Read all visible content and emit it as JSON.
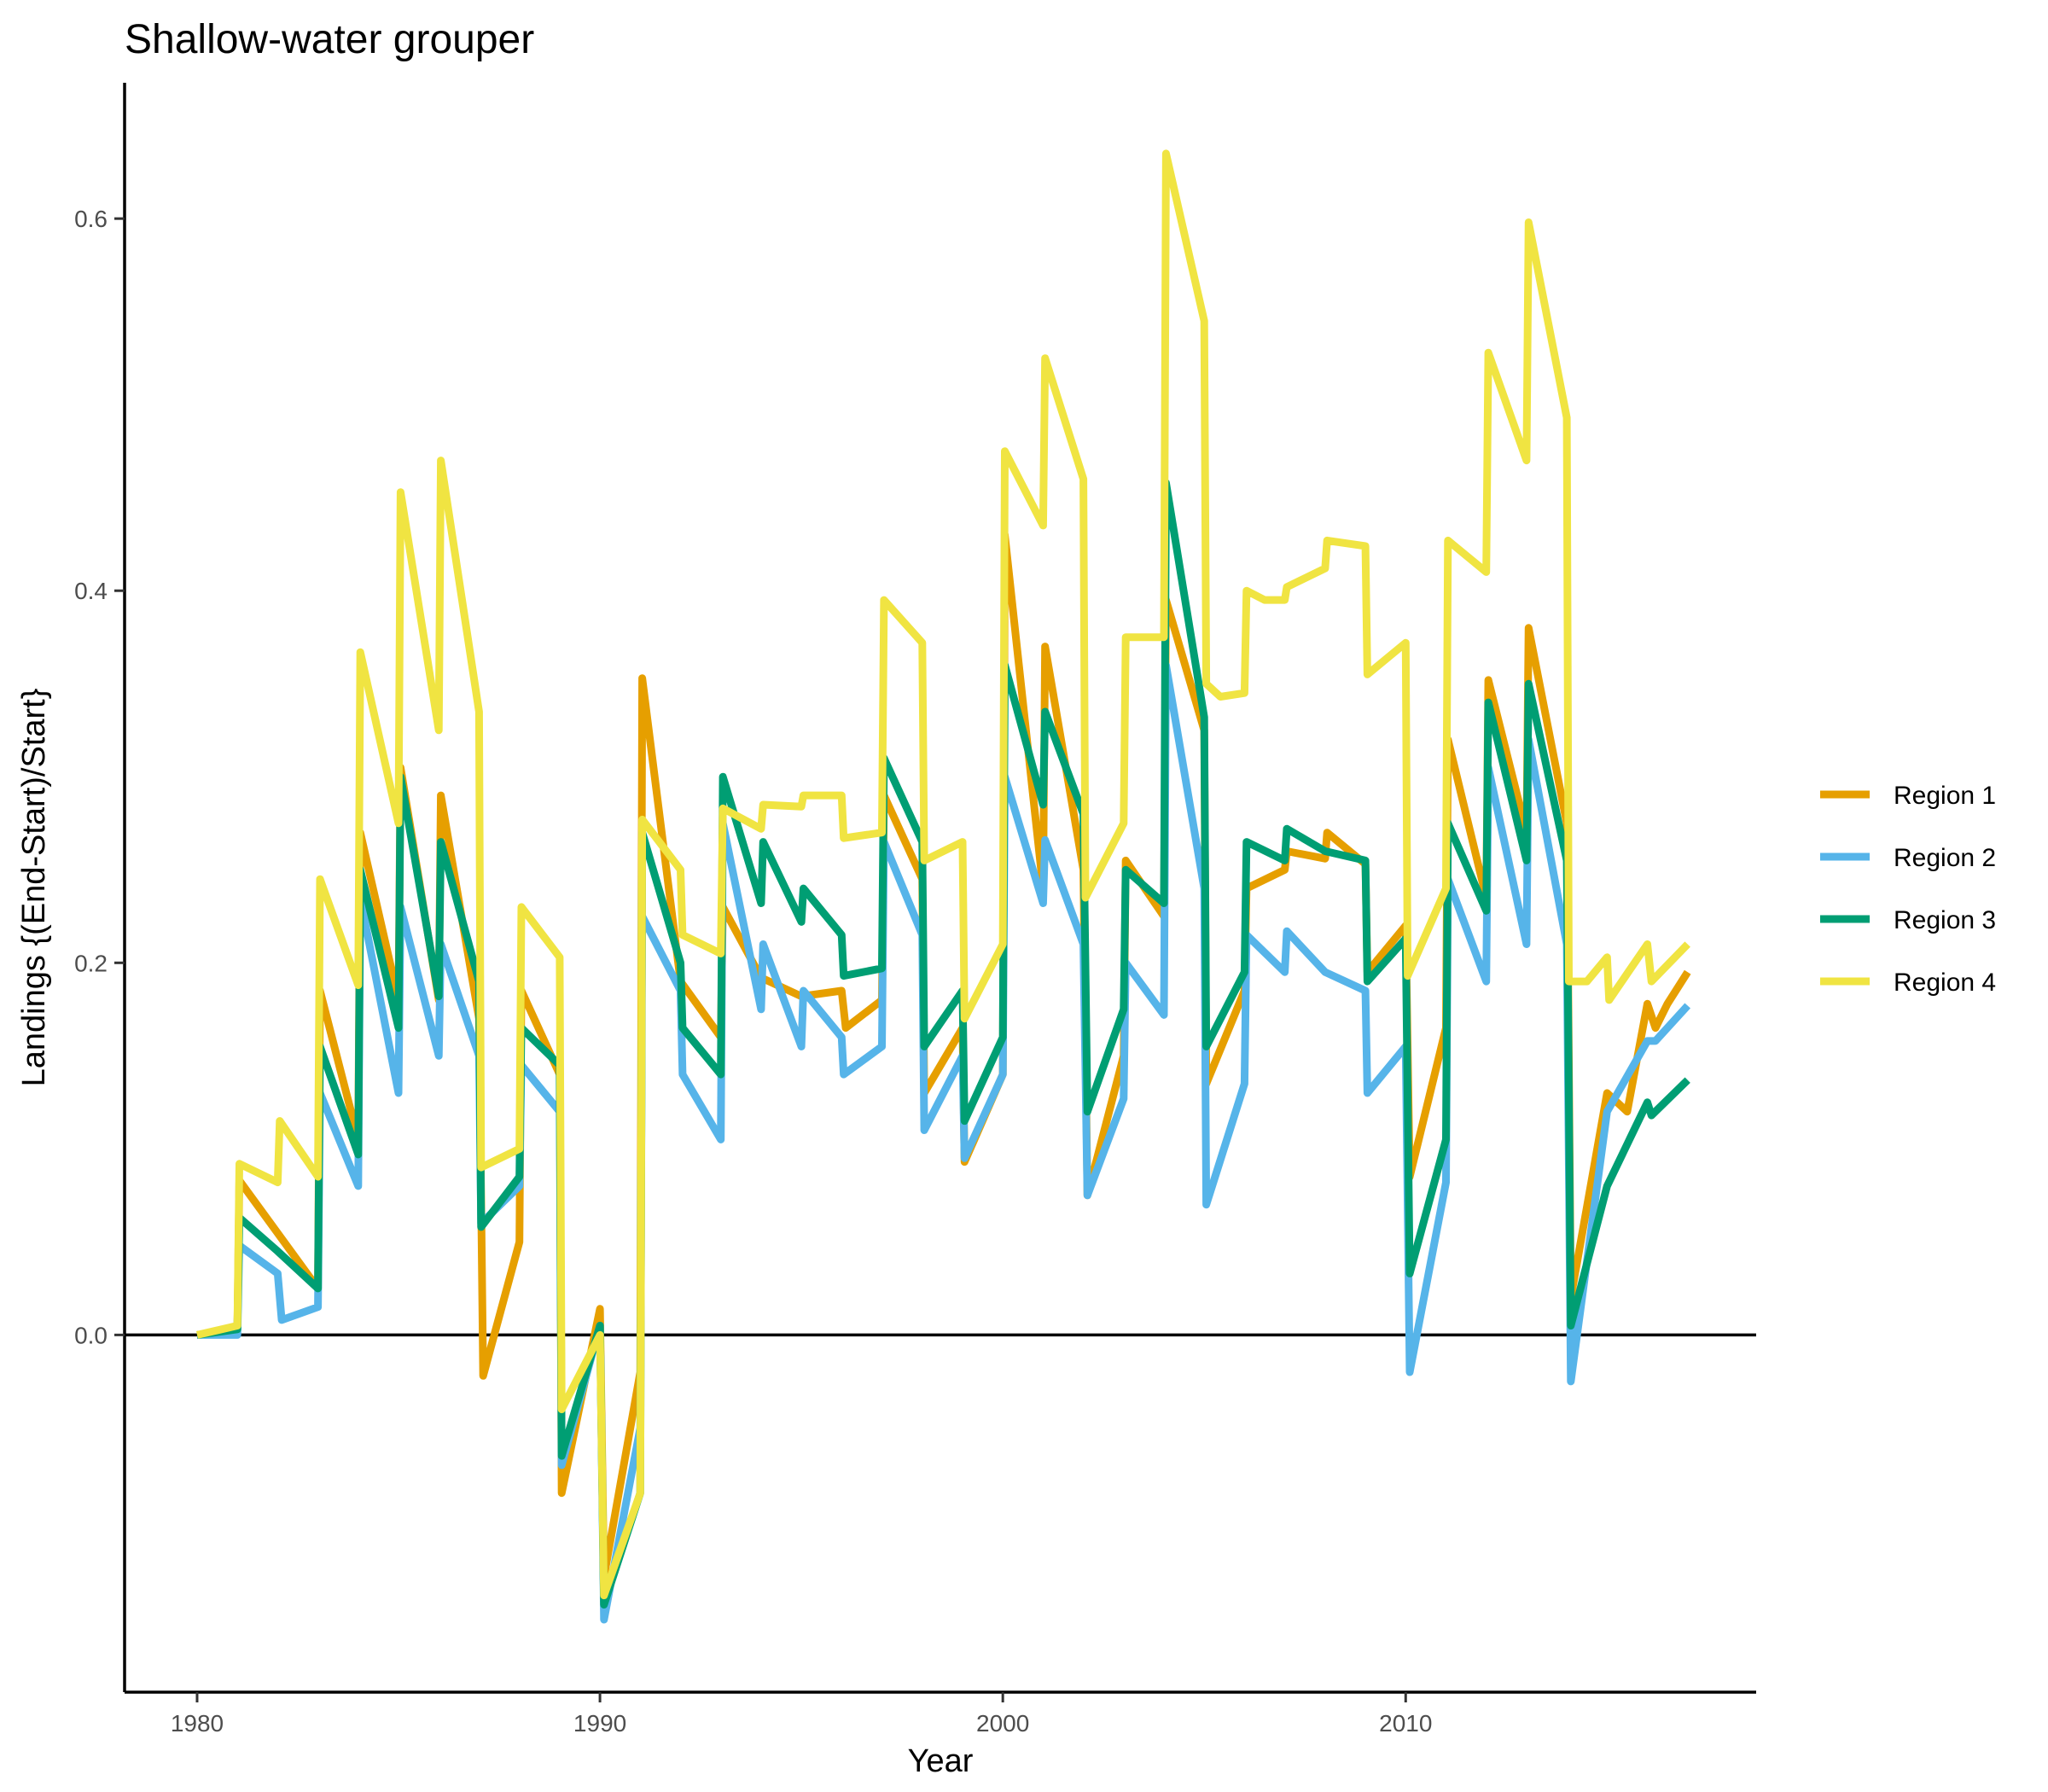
{
  "chart_data": {
    "type": "line",
    "title": "Shallow-water grouper",
    "xlabel": "Year",
    "ylabel": "Landings {(End-Start)/Start}",
    "xlim": [
      1978.2,
      2018.7
    ],
    "ylim": [
      -0.192,
      0.673
    ],
    "xticks": [
      1980,
      1990,
      2000,
      2010
    ],
    "yticks": [
      0.0,
      0.2,
      0.4,
      0.6
    ],
    "ytick_labels": [
      "0.0",
      "0.2",
      "0.4",
      "0.6"
    ],
    "reference_line_y": 0.0,
    "grid": false,
    "legend_position": "right",
    "series": [
      {
        "name": "Region 1",
        "color": "#E69F00",
        "points": [
          [
            1980,
            0.0
          ],
          [
            1981,
            0.003
          ],
          [
            1981.05,
            0.083
          ],
          [
            1983,
            0.025
          ],
          [
            1983.05,
            0.185
          ],
          [
            1984,
            0.105
          ],
          [
            1984.05,
            0.27
          ],
          [
            1985,
            0.18
          ],
          [
            1985.05,
            0.305
          ],
          [
            1986,
            0.18
          ],
          [
            1986.05,
            0.29
          ],
          [
            1987,
            0.17
          ],
          [
            1987.1,
            -0.022
          ],
          [
            1988,
            0.05
          ],
          [
            1988.05,
            0.185
          ],
          [
            1989,
            0.14
          ],
          [
            1989.05,
            -0.085
          ],
          [
            1990,
            0.014
          ],
          [
            1990.1,
            -0.13
          ],
          [
            1991,
            -0.02
          ],
          [
            1991.05,
            0.353
          ],
          [
            1992,
            0.19
          ],
          [
            1993,
            0.16
          ],
          [
            1993.05,
            0.23
          ],
          [
            1994,
            0.192
          ],
          [
            1995,
            0.182
          ],
          [
            1996,
            0.185
          ],
          [
            1996.1,
            0.165
          ],
          [
            1997,
            0.18
          ],
          [
            1997.05,
            0.29
          ],
          [
            1998,
            0.245
          ],
          [
            1998.05,
            0.13
          ],
          [
            1999,
            0.165
          ],
          [
            1999.05,
            0.093
          ],
          [
            2000,
            0.14
          ],
          [
            2000.05,
            0.43
          ],
          [
            2001,
            0.24
          ],
          [
            2001.05,
            0.37
          ],
          [
            2002,
            0.25
          ],
          [
            2002.1,
            0.075
          ],
          [
            2003,
            0.15
          ],
          [
            2003.05,
            0.255
          ],
          [
            2004,
            0.225
          ],
          [
            2004.05,
            0.395
          ],
          [
            2005,
            0.325
          ],
          [
            2005.05,
            0.135
          ],
          [
            2006,
            0.185
          ],
          [
            2006.05,
            0.24
          ],
          [
            2007,
            0.25
          ],
          [
            2007.05,
            0.26
          ],
          [
            2008,
            0.256
          ],
          [
            2008.05,
            0.27
          ],
          [
            2009,
            0.253
          ],
          [
            2009.05,
            0.195
          ],
          [
            2010,
            0.22
          ],
          [
            2010.1,
            0.085
          ],
          [
            2011,
            0.165
          ],
          [
            2011.05,
            0.32
          ],
          [
            2012,
            0.235
          ],
          [
            2012.05,
            0.352
          ],
          [
            2013,
            0.27
          ],
          [
            2013.05,
            0.38
          ],
          [
            2014,
            0.275
          ],
          [
            2014.1,
            0.02
          ],
          [
            2015,
            0.13
          ],
          [
            2015.5,
            0.12
          ],
          [
            2016,
            0.178
          ],
          [
            2016.2,
            0.165
          ],
          [
            2016.5,
            0.178
          ],
          [
            2017,
            0.195
          ]
        ]
      },
      {
        "name": "Region 2",
        "color": "#56B4E9",
        "points": [
          [
            1980,
            0.0
          ],
          [
            1981,
            0.0
          ],
          [
            1981.05,
            0.048
          ],
          [
            1982,
            0.033
          ],
          [
            1982.1,
            0.008
          ],
          [
            1983,
            0.015
          ],
          [
            1983.05,
            0.13
          ],
          [
            1984,
            0.08
          ],
          [
            1984.05,
            0.235
          ],
          [
            1985,
            0.13
          ],
          [
            1985.05,
            0.23
          ],
          [
            1986,
            0.15
          ],
          [
            1986.05,
            0.21
          ],
          [
            1987,
            0.15
          ],
          [
            1987.05,
            0.06
          ],
          [
            1988,
            0.08
          ],
          [
            1988.05,
            0.145
          ],
          [
            1989,
            0.12
          ],
          [
            1989.05,
            -0.07
          ],
          [
            1990,
            0.005
          ],
          [
            1990.1,
            -0.153
          ],
          [
            1991,
            -0.05
          ],
          [
            1991.05,
            0.225
          ],
          [
            1992,
            0.185
          ],
          [
            1992.05,
            0.14
          ],
          [
            1993,
            0.105
          ],
          [
            1993.05,
            0.275
          ],
          [
            1994,
            0.175
          ],
          [
            1994.05,
            0.21
          ],
          [
            1995,
            0.155
          ],
          [
            1995.05,
            0.185
          ],
          [
            1996,
            0.16
          ],
          [
            1996.05,
            0.14
          ],
          [
            1997,
            0.155
          ],
          [
            1997.05,
            0.265
          ],
          [
            1998,
            0.215
          ],
          [
            1998.05,
            0.11
          ],
          [
            1999,
            0.15
          ],
          [
            1999.05,
            0.095
          ],
          [
            2000,
            0.14
          ],
          [
            2000.05,
            0.3
          ],
          [
            2001,
            0.232
          ],
          [
            2001.05,
            0.266
          ],
          [
            2002,
            0.21
          ],
          [
            2002.1,
            0.075
          ],
          [
            2003,
            0.127
          ],
          [
            2003.05,
            0.2
          ],
          [
            2004,
            0.172
          ],
          [
            2004.05,
            0.36
          ],
          [
            2005,
            0.24
          ],
          [
            2005.05,
            0.07
          ],
          [
            2006,
            0.135
          ],
          [
            2006.05,
            0.215
          ],
          [
            2007,
            0.195
          ],
          [
            2007.05,
            0.217
          ],
          [
            2008,
            0.195
          ],
          [
            2009,
            0.185
          ],
          [
            2009.05,
            0.13
          ],
          [
            2010,
            0.155
          ],
          [
            2010.1,
            -0.02
          ],
          [
            2011,
            0.082
          ],
          [
            2011.05,
            0.245
          ],
          [
            2012,
            0.19
          ],
          [
            2012.05,
            0.305
          ],
          [
            2013,
            0.21
          ],
          [
            2013.05,
            0.32
          ],
          [
            2014,
            0.21
          ],
          [
            2014.1,
            -0.025
          ],
          [
            2015,
            0.12
          ],
          [
            2016,
            0.158
          ],
          [
            2016.2,
            0.158
          ],
          [
            2017,
            0.177
          ]
        ]
      },
      {
        "name": "Region 3",
        "color": "#009E73",
        "points": [
          [
            1980,
            0.0
          ],
          [
            1981,
            0.003
          ],
          [
            1981.05,
            0.063
          ],
          [
            1982,
            0.045
          ],
          [
            1983,
            0.025
          ],
          [
            1983.05,
            0.155
          ],
          [
            1984,
            0.097
          ],
          [
            1984.05,
            0.25
          ],
          [
            1985,
            0.165
          ],
          [
            1985.05,
            0.3
          ],
          [
            1986,
            0.182
          ],
          [
            1986.05,
            0.265
          ],
          [
            1987,
            0.19
          ],
          [
            1987.05,
            0.058
          ],
          [
            1988,
            0.085
          ],
          [
            1988.05,
            0.165
          ],
          [
            1989,
            0.145
          ],
          [
            1989.05,
            -0.065
          ],
          [
            1990,
            0.005
          ],
          [
            1990.1,
            -0.145
          ],
          [
            1991,
            -0.085
          ],
          [
            1991.05,
            0.27
          ],
          [
            1992,
            0.2
          ],
          [
            1992.05,
            0.165
          ],
          [
            1993,
            0.14
          ],
          [
            1993.05,
            0.3
          ],
          [
            1994,
            0.232
          ],
          [
            1994.05,
            0.265
          ],
          [
            1995,
            0.222
          ],
          [
            1995.05,
            0.24
          ],
          [
            1996,
            0.215
          ],
          [
            1996.05,
            0.193
          ],
          [
            1997,
            0.197
          ],
          [
            1997.05,
            0.31
          ],
          [
            1998,
            0.265
          ],
          [
            1998.05,
            0.155
          ],
          [
            1999,
            0.185
          ],
          [
            1999.05,
            0.115
          ],
          [
            2000,
            0.16
          ],
          [
            2000.05,
            0.36
          ],
          [
            2001,
            0.285
          ],
          [
            2001.05,
            0.335
          ],
          [
            2002,
            0.28
          ],
          [
            2002.1,
            0.12
          ],
          [
            2003,
            0.175
          ],
          [
            2003.05,
            0.25
          ],
          [
            2004,
            0.232
          ],
          [
            2004.05,
            0.458
          ],
          [
            2005,
            0.332
          ],
          [
            2005.05,
            0.155
          ],
          [
            2006,
            0.195
          ],
          [
            2006.05,
            0.265
          ],
          [
            2007,
            0.255
          ],
          [
            2007.05,
            0.272
          ],
          [
            2008,
            0.26
          ],
          [
            2009,
            0.255
          ],
          [
            2009.05,
            0.19
          ],
          [
            2010,
            0.213
          ],
          [
            2010.1,
            0.033
          ],
          [
            2011,
            0.105
          ],
          [
            2011.05,
            0.275
          ],
          [
            2012,
            0.228
          ],
          [
            2012.05,
            0.34
          ],
          [
            2013,
            0.255
          ],
          [
            2013.05,
            0.35
          ],
          [
            2014,
            0.255
          ],
          [
            2014.1,
            0.005
          ],
          [
            2015,
            0.08
          ],
          [
            2016,
            0.125
          ],
          [
            2016.1,
            0.118
          ],
          [
            2017,
            0.137
          ]
        ]
      },
      {
        "name": "Region 4",
        "color": "#F0E442",
        "points": [
          [
            1980,
            0.0
          ],
          [
            1981,
            0.005
          ],
          [
            1981.05,
            0.092
          ],
          [
            1982,
            0.082
          ],
          [
            1982.05,
            0.115
          ],
          [
            1983,
            0.085
          ],
          [
            1983.05,
            0.245
          ],
          [
            1984,
            0.188
          ],
          [
            1984.05,
            0.367
          ],
          [
            1985,
            0.275
          ],
          [
            1985.05,
            0.453
          ],
          [
            1986,
            0.325
          ],
          [
            1986.05,
            0.47
          ],
          [
            1987,
            0.335
          ],
          [
            1987.05,
            0.09
          ],
          [
            1988,
            0.1
          ],
          [
            1988.05,
            0.23
          ],
          [
            1989,
            0.203
          ],
          [
            1989.05,
            -0.04
          ],
          [
            1990,
            0.0
          ],
          [
            1990.1,
            -0.14
          ],
          [
            1991,
            -0.085
          ],
          [
            1991.05,
            0.277
          ],
          [
            1992,
            0.25
          ],
          [
            1992.05,
            0.215
          ],
          [
            1993,
            0.205
          ],
          [
            1993.05,
            0.283
          ],
          [
            1994,
            0.272
          ],
          [
            1994.05,
            0.285
          ],
          [
            1995,
            0.284
          ],
          [
            1995.05,
            0.29
          ],
          [
            1996,
            0.29
          ],
          [
            1996.05,
            0.267
          ],
          [
            1997,
            0.27
          ],
          [
            1997.05,
            0.395
          ],
          [
            1998,
            0.372
          ],
          [
            1998.05,
            0.255
          ],
          [
            1999,
            0.265
          ],
          [
            1999.05,
            0.17
          ],
          [
            2000,
            0.21
          ],
          [
            2000.05,
            0.475
          ],
          [
            2001,
            0.435
          ],
          [
            2001.05,
            0.525
          ],
          [
            2002,
            0.46
          ],
          [
            2002.05,
            0.235
          ],
          [
            2003,
            0.275
          ],
          [
            2003.05,
            0.375
          ],
          [
            2004,
            0.375
          ],
          [
            2004.05,
            0.635
          ],
          [
            2005,
            0.545
          ],
          [
            2005.05,
            0.35
          ],
          [
            2005.4,
            0.343
          ],
          [
            2006,
            0.345
          ],
          [
            2006.05,
            0.4
          ],
          [
            2006.5,
            0.395
          ],
          [
            2007,
            0.395
          ],
          [
            2007.05,
            0.402
          ],
          [
            2008,
            0.412
          ],
          [
            2008.05,
            0.427
          ],
          [
            2009,
            0.424
          ],
          [
            2009.05,
            0.355
          ],
          [
            2010,
            0.372
          ],
          [
            2010.05,
            0.193
          ],
          [
            2011,
            0.24
          ],
          [
            2011.05,
            0.427
          ],
          [
            2012,
            0.41
          ],
          [
            2012.05,
            0.528
          ],
          [
            2013,
            0.47
          ],
          [
            2013.05,
            0.598
          ],
          [
            2014,
            0.493
          ],
          [
            2014.05,
            0.19
          ],
          [
            2014.5,
            0.19
          ],
          [
            2015,
            0.203
          ],
          [
            2015.05,
            0.18
          ],
          [
            2016,
            0.21
          ],
          [
            2016.1,
            0.19
          ],
          [
            2017,
            0.21
          ]
        ]
      }
    ]
  }
}
